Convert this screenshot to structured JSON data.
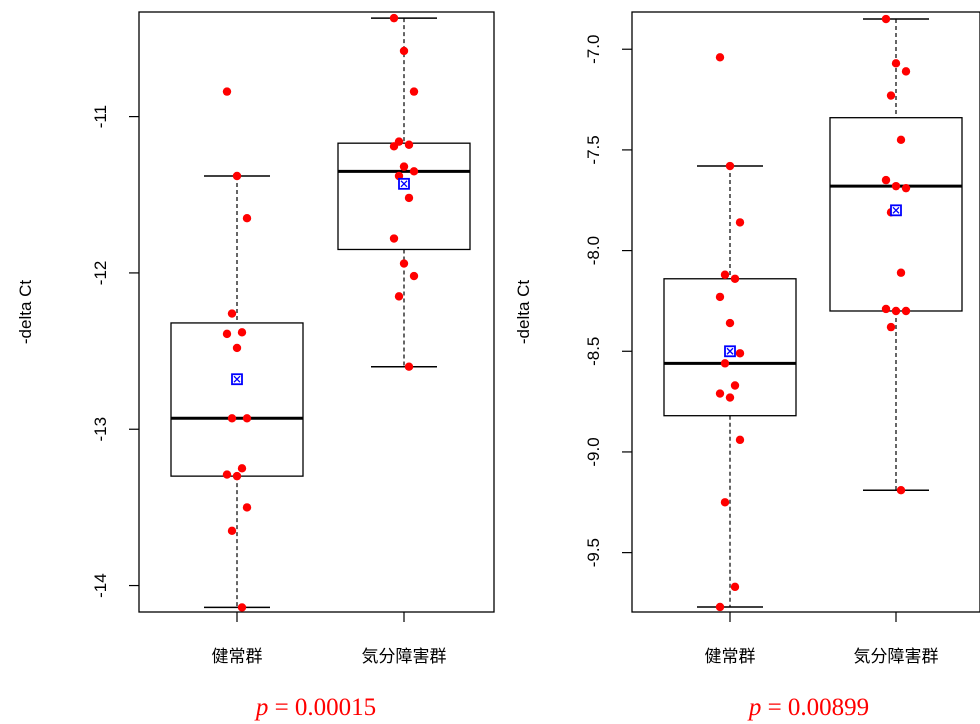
{
  "chart_data": [
    {
      "type": "boxplot",
      "ylabel": "-delta Ct",
      "categories": [
        "健常群",
        "気分障害群"
      ],
      "y_ticks": [
        -14,
        -13,
        -12,
        -11
      ],
      "y_tick_labels": [
        "-14",
        "-13",
        "-12",
        "-11"
      ],
      "ylim": [
        -14.15,
        -10.35
      ],
      "p_value_prefix": "p",
      "p_value_text": "= 0.00015",
      "groups": [
        {
          "category": "健常群",
          "whisker_low": -14.14,
          "q1": -13.3,
          "median": -12.93,
          "q3": -12.32,
          "whisker_high": -11.38,
          "mean": -12.68,
          "points": [
            -10.84,
            -11.38,
            -11.65,
            -12.26,
            -12.38,
            -12.39,
            -12.48,
            -12.93,
            -12.93,
            -13.25,
            -13.29,
            -13.3,
            -13.5,
            -13.65,
            -14.14
          ]
        },
        {
          "category": "気分障害群",
          "whisker_low": -12.6,
          "q1": -11.85,
          "median": -11.35,
          "q3": -11.17,
          "whisker_high": -10.37,
          "mean": -11.43,
          "points": [
            -10.37,
            -10.58,
            -10.84,
            -11.16,
            -11.18,
            -11.19,
            -11.32,
            -11.35,
            -11.38,
            -11.52,
            -11.78,
            -11.94,
            -12.02,
            -12.15,
            -12.6
          ]
        }
      ]
    },
    {
      "type": "boxplot",
      "ylabel": "-delta Ct",
      "categories": [
        "健常群",
        "気分障害群"
      ],
      "y_ticks": [
        -9.5,
        -9.0,
        -8.5,
        -8.0,
        -7.5,
        -7.0
      ],
      "y_tick_labels": [
        "-9.5",
        "-9.0",
        "-8.5",
        "-8.0",
        "-7.5",
        "-7.0"
      ],
      "ylim": [
        -9.78,
        -6.83
      ],
      "p_value_prefix": "p",
      "p_value_text": "= 0.00899",
      "groups": [
        {
          "category": "健常群",
          "whisker_low": -9.77,
          "q1": -8.82,
          "median": -8.56,
          "q3": -8.14,
          "whisker_high": -7.58,
          "mean": -8.5,
          "points": [
            -7.04,
            -7.58,
            -7.86,
            -8.12,
            -8.14,
            -8.23,
            -8.36,
            -8.51,
            -8.56,
            -8.67,
            -8.71,
            -8.73,
            -8.94,
            -9.25,
            -9.67,
            -9.77
          ]
        },
        {
          "category": "気分障害群",
          "whisker_low": -9.19,
          "q1": -8.3,
          "median": -7.68,
          "q3": -7.34,
          "whisker_high": -6.85,
          "mean": -7.8,
          "points": [
            -6.85,
            -7.07,
            -7.11,
            -7.23,
            -7.45,
            -7.65,
            -7.68,
            -7.69,
            -7.81,
            -8.11,
            -8.29,
            -8.3,
            -8.3,
            -8.38,
            -9.19
          ]
        }
      ]
    }
  ],
  "colors": {
    "point": "#ff0000",
    "mean_marker": "#0000ff",
    "box": "#000000",
    "p_value": "#ff0000"
  }
}
